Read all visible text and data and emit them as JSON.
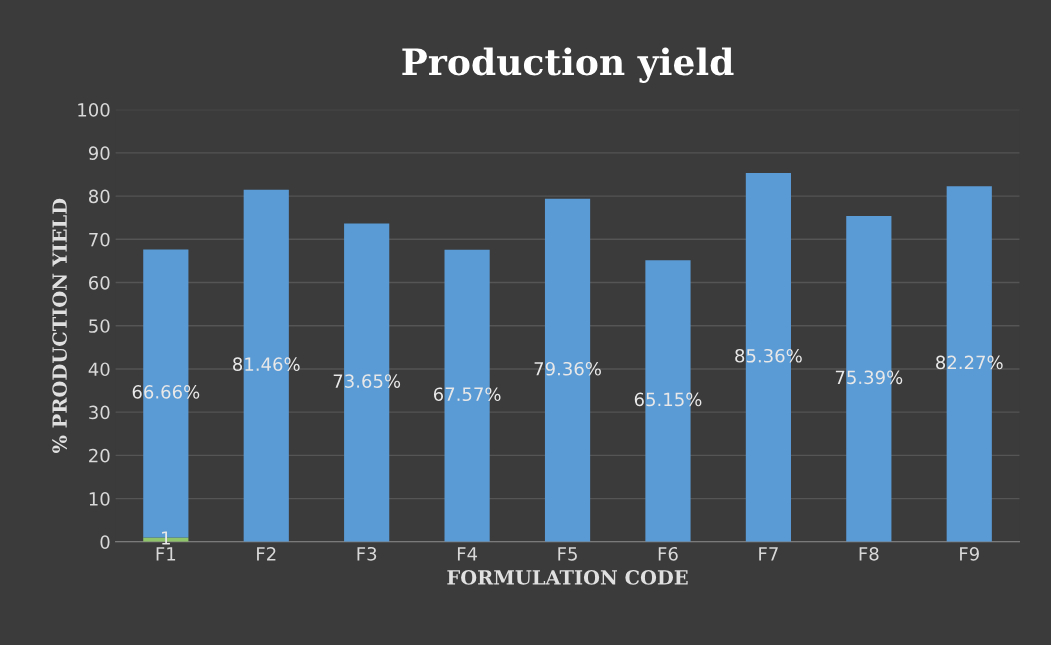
{
  "chart_data": {
    "type": "bar",
    "title": "Production yield",
    "xlabel": "FORMULATION CODE",
    "ylabel": "% PRODUCTION YIELD",
    "categories": [
      "F1",
      "F2",
      "F3",
      "F4",
      "F5",
      "F6",
      "F7",
      "F8",
      "F9"
    ],
    "stacked": true,
    "series": [
      {
        "color": "#8fc46a",
        "values": [
          1,
          null,
          null,
          null,
          null,
          null,
          null,
          null,
          null
        ],
        "value_labels": [
          "1",
          null,
          null,
          null,
          null,
          null,
          null,
          null,
          null
        ]
      },
      {
        "color": "#5b9bd5",
        "values": [
          66.66,
          81.46,
          73.65,
          67.57,
          79.36,
          65.15,
          85.36,
          75.39,
          82.27
        ],
        "value_labels": [
          "66.66%",
          "81.46%",
          "73.65%",
          "67.57%",
          "79.36%",
          "65.15%",
          "85.36%",
          "75.39%",
          "82.27%"
        ]
      }
    ],
    "ylim": [
      0,
      100
    ],
    "yticks": [
      0,
      10,
      20,
      30,
      40,
      50,
      60,
      70,
      80,
      90,
      100
    ],
    "grid": "y"
  }
}
